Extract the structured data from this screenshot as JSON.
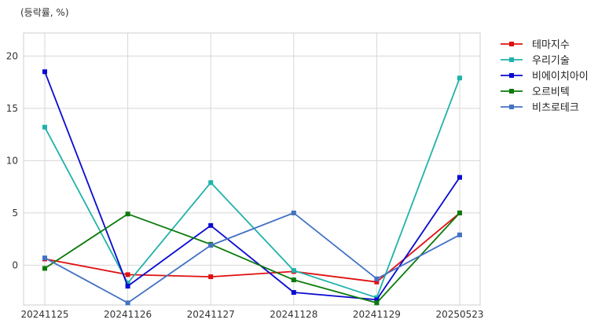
{
  "chart_data": {
    "type": "line",
    "title": "",
    "ylabel": "(등락률, %)",
    "xlabel": "",
    "categories": [
      "20241125",
      "20241126",
      "20241127",
      "20241128",
      "20241129",
      "20250523"
    ],
    "ylim": [
      -3.8,
      22.2
    ],
    "yticks": [
      0,
      5,
      10,
      15,
      20
    ],
    "grid": true,
    "legend_position": "outside-top-right",
    "series": [
      {
        "name": "테마지수",
        "color": "#e01010",
        "values": [
          0.6,
          -0.9,
          -1.1,
          -0.6,
          -1.6,
          5.0
        ]
      },
      {
        "name": "우리기술",
        "color": "#20b2aa",
        "values": [
          13.2,
          -1.7,
          7.9,
          -0.5,
          -3.1,
          17.9
        ]
      },
      {
        "name": "비에이치아이",
        "color": "#0a0ad0",
        "values": [
          18.5,
          -2.0,
          3.8,
          -2.6,
          -3.3,
          8.4
        ]
      },
      {
        "name": "오르비텍",
        "color": "#0a7a0a",
        "values": [
          -0.3,
          4.9,
          2.0,
          -1.4,
          -3.6,
          5.0
        ]
      },
      {
        "name": "비츠로테크",
        "color": "#4472c4",
        "values": [
          0.7,
          -3.6,
          1.9,
          5.0,
          -1.3,
          2.9
        ]
      }
    ]
  }
}
